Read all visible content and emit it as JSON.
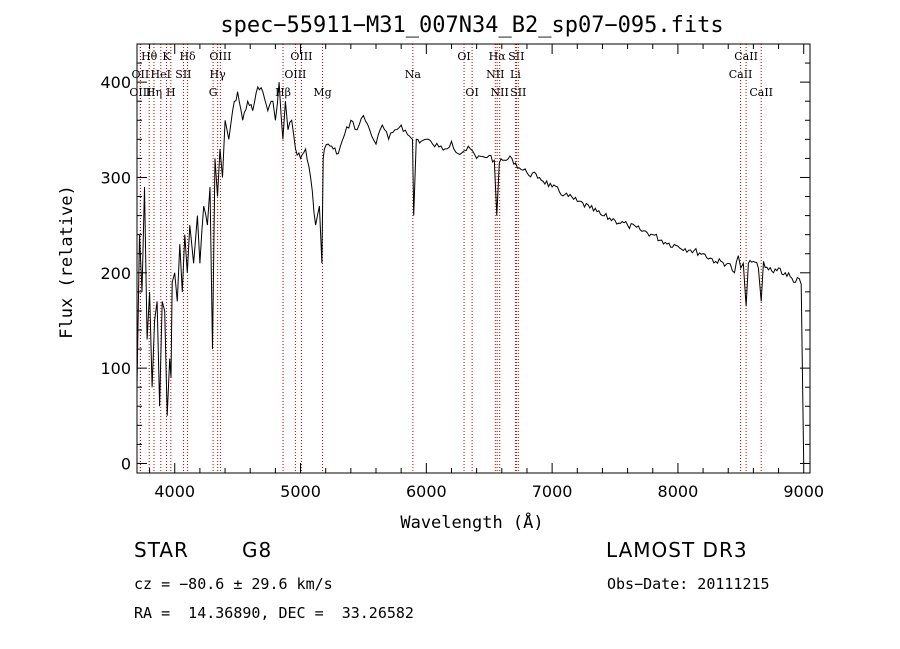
{
  "chart_data": {
    "type": "line",
    "title": "spec−55911−M31_007N34_B2_sp07−095.fits",
    "xlabel": "Wavelength (Å)",
    "ylabel": "Flux (relative)",
    "xlim": [
      3700,
      9050
    ],
    "ylim": [
      -10,
      440
    ],
    "x_ticks": [
      4000,
      5000,
      6000,
      7000,
      8000,
      9000
    ],
    "y_ticks": [
      0,
      100,
      200,
      300,
      400
    ],
    "series": [
      {
        "name": "spectrum",
        "x": [
          3700,
          3720,
          3740,
          3760,
          3780,
          3800,
          3820,
          3840,
          3860,
          3880,
          3900,
          3920,
          3940,
          3960,
          3970,
          3980,
          4000,
          4020,
          4040,
          4060,
          4080,
          4100,
          4120,
          4150,
          4180,
          4200,
          4230,
          4260,
          4280,
          4300,
          4320,
          4340,
          4360,
          4380,
          4400,
          4430,
          4460,
          4500,
          4540,
          4580,
          4620,
          4660,
          4700,
          4740,
          4780,
          4800,
          4830,
          4860,
          4880,
          4900,
          4930,
          4960,
          5000,
          5040,
          5080,
          5120,
          5150,
          5170,
          5180,
          5190,
          5220,
          5260,
          5300,
          5350,
          5400,
          5450,
          5500,
          5550,
          5600,
          5650,
          5700,
          5750,
          5800,
          5850,
          5890,
          5900,
          5920,
          5960,
          6000,
          6050,
          6100,
          6150,
          6200,
          6250,
          6300,
          6350,
          6400,
          6450,
          6500,
          6540,
          6560,
          6580,
          6620,
          6680,
          6740,
          6800,
          6900,
          7000,
          7100,
          7200,
          7300,
          7400,
          7500,
          7600,
          7700,
          7800,
          7900,
          8000,
          8100,
          8200,
          8300,
          8400,
          8450,
          8480,
          8500,
          8520,
          8542,
          8560,
          8600,
          8640,
          8662,
          8680,
          8720,
          8760,
          8800,
          8840,
          8880,
          8920,
          8950,
          8980,
          9000
        ],
        "y": [
          80,
          240,
          180,
          290,
          130,
          180,
          80,
          150,
          170,
          60,
          170,
          160,
          50,
          110,
          90,
          190,
          200,
          170,
          230,
          180,
          240,
          200,
          250,
          210,
          260,
          210,
          270,
          250,
          290,
          120,
          320,
          280,
          330,
          300,
          360,
          340,
          370,
          390,
          360,
          380,
          370,
          395,
          390,
          370,
          380,
          360,
          400,
          340,
          380,
          350,
          360,
          330,
          320,
          330,
          300,
          250,
          270,
          210,
          320,
          330,
          335,
          330,
          325,
          345,
          360,
          350,
          365,
          350,
          335,
          355,
          340,
          350,
          355,
          345,
          340,
          260,
          340,
          338,
          340,
          335,
          332,
          330,
          338,
          325,
          328,
          330,
          320,
          322,
          323,
          318,
          260,
          315,
          318,
          320,
          310,
          305,
          300,
          290,
          282,
          275,
          268,
          260,
          255,
          250,
          245,
          240,
          232,
          228,
          224,
          220,
          212,
          210,
          200,
          218,
          205,
          210,
          165,
          210,
          212,
          205,
          170,
          212,
          203,
          200,
          205,
          198,
          200,
          190,
          195,
          188,
          0
        ]
      }
    ],
    "line_markers": [
      {
        "label": "Hθ",
        "x": 3797,
        "row": 0
      },
      {
        "label": "OII",
        "x": 3727,
        "row": 1
      },
      {
        "label": "OIII",
        "x": 3727,
        "row": 2
      },
      {
        "label": "Hη",
        "x": 3835,
        "row": 2
      },
      {
        "label": "HeI",
        "x": 3889,
        "row": 1
      },
      {
        "label": "K",
        "x": 3934,
        "row": 0
      },
      {
        "label": "H",
        "x": 3969,
        "row": 2
      },
      {
        "label": "SII",
        "x": 4069,
        "row": 1
      },
      {
        "label": "Hδ",
        "x": 4102,
        "row": 0
      },
      {
        "label": "OIII",
        "x": 4363,
        "row": 0
      },
      {
        "label": "Hγ",
        "x": 4341,
        "row": 1
      },
      {
        "label": "G",
        "x": 4305,
        "row": 2
      },
      {
        "label": "Hβ",
        "x": 4861,
        "row": 2
      },
      {
        "label": "OIII",
        "x": 5007,
        "row": 0
      },
      {
        "label": "OIII",
        "x": 4959,
        "row": 1
      },
      {
        "label": "Mg",
        "x": 5175,
        "row": 2
      },
      {
        "label": "Na",
        "x": 5893,
        "row": 1
      },
      {
        "label": "OI",
        "x": 6300,
        "row": 0
      },
      {
        "label": "OI",
        "x": 6364,
        "row": 2
      },
      {
        "label": "Hα",
        "x": 6563,
        "row": 0
      },
      {
        "label": "NII",
        "x": 6548,
        "row": 1
      },
      {
        "label": "NII",
        "x": 6583,
        "row": 2
      },
      {
        "label": "SII",
        "x": 6716,
        "row": 0
      },
      {
        "label": "Li",
        "x": 6708,
        "row": 1
      },
      {
        "label": "SII",
        "x": 6731,
        "row": 2
      },
      {
        "label": "CaII",
        "x": 8498,
        "row": 1
      },
      {
        "label": "CaII",
        "x": 8542,
        "row": 0
      },
      {
        "label": "CaII",
        "x": 8662,
        "row": 2
      }
    ]
  },
  "info": {
    "class_label": "STAR",
    "subclass": "G8",
    "survey": "LAMOST DR3",
    "cz_line": "cz = −80.6 ± 29.6 km/s",
    "obs_date_line": "Obs−Date: 20111215",
    "radec_line": "RA =  14.36890, DEC =  33.26582"
  }
}
